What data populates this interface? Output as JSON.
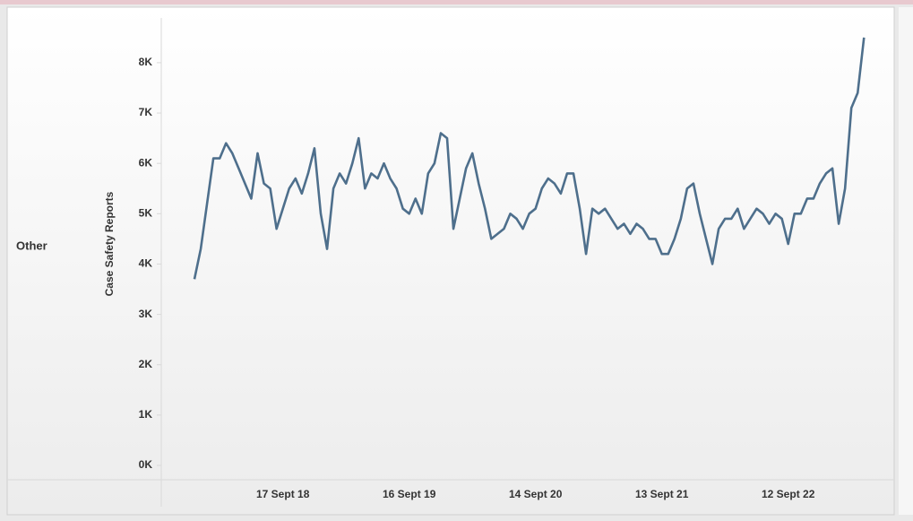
{
  "chart_data": {
    "type": "line",
    "row_label": "Other",
    "y_label": "Case Safety Reports",
    "categories": [
      null,
      null,
      null,
      null,
      null,
      null,
      null,
      null,
      null,
      null,
      null,
      null,
      null,
      null,
      "17 Sept 18",
      null,
      null,
      null,
      null,
      null,
      null,
      null,
      null,
      null,
      null,
      null,
      null,
      null,
      null,
      null,
      null,
      null,
      null,
      null,
      "16 Sept 19",
      null,
      null,
      null,
      null,
      null,
      null,
      null,
      null,
      null,
      null,
      null,
      null,
      null,
      null,
      null,
      null,
      null,
      null,
      null,
      "14 Sept 20",
      null,
      null,
      null,
      null,
      null,
      null,
      null,
      null,
      null,
      null,
      null,
      null,
      null,
      null,
      null,
      null,
      null,
      null,
      null,
      "13 Sept 21",
      null,
      null,
      null,
      null,
      null,
      null,
      null,
      null,
      null,
      null,
      null,
      null,
      null,
      null,
      null,
      null,
      null,
      null,
      null,
      "12 Sept 22",
      null,
      null,
      null,
      null,
      null,
      null,
      null,
      null,
      null,
      null,
      null,
      null
    ],
    "series": [
      {
        "name": "Case Safety Reports",
        "color": "#4e6f8c",
        "values": [
          3700,
          4300,
          5200,
          6100,
          6100,
          6400,
          6200,
          5900,
          5600,
          5300,
          6200,
          5600,
          5500,
          4700,
          5100,
          5500,
          5700,
          5400,
          5800,
          6300,
          5000,
          4300,
          5500,
          5800,
          5600,
          6000,
          6500,
          5500,
          5800,
          5700,
          6000,
          5700,
          5500,
          5100,
          5000,
          5300,
          5000,
          5800,
          6000,
          6600,
          6500,
          4700,
          5300,
          5900,
          6200,
          5600,
          5100,
          4500,
          4600,
          4700,
          5000,
          4900,
          4700,
          5000,
          5100,
          5500,
          5700,
          5600,
          5400,
          5800,
          5800,
          5100,
          4200,
          5100,
          5000,
          5100,
          4900,
          4700,
          4800,
          4600,
          4800,
          4700,
          4500,
          4500,
          4200,
          4200,
          4500,
          4900,
          5500,
          5600,
          5000,
          4500,
          4000,
          4700,
          4900,
          4900,
          5100,
          4700,
          4900,
          5100,
          5000,
          4800,
          5000,
          4900,
          4400,
          5000,
          5000,
          5300,
          5300,
          5600,
          5800,
          5900,
          4800,
          5500,
          7100,
          7400,
          8500
        ]
      }
    ],
    "ylim": [
      0,
      8800
    ],
    "yticks": [
      {
        "value": 0,
        "label": "0K"
      },
      {
        "value": 1000,
        "label": "1K"
      },
      {
        "value": 2000,
        "label": "2K"
      },
      {
        "value": 3000,
        "label": "3K"
      },
      {
        "value": 4000,
        "label": "4K"
      },
      {
        "value": 5000,
        "label": "5K"
      },
      {
        "value": 6000,
        "label": "6K"
      },
      {
        "value": 7000,
        "label": "7K"
      },
      {
        "value": 8000,
        "label": "8K"
      }
    ],
    "grid": false
  }
}
